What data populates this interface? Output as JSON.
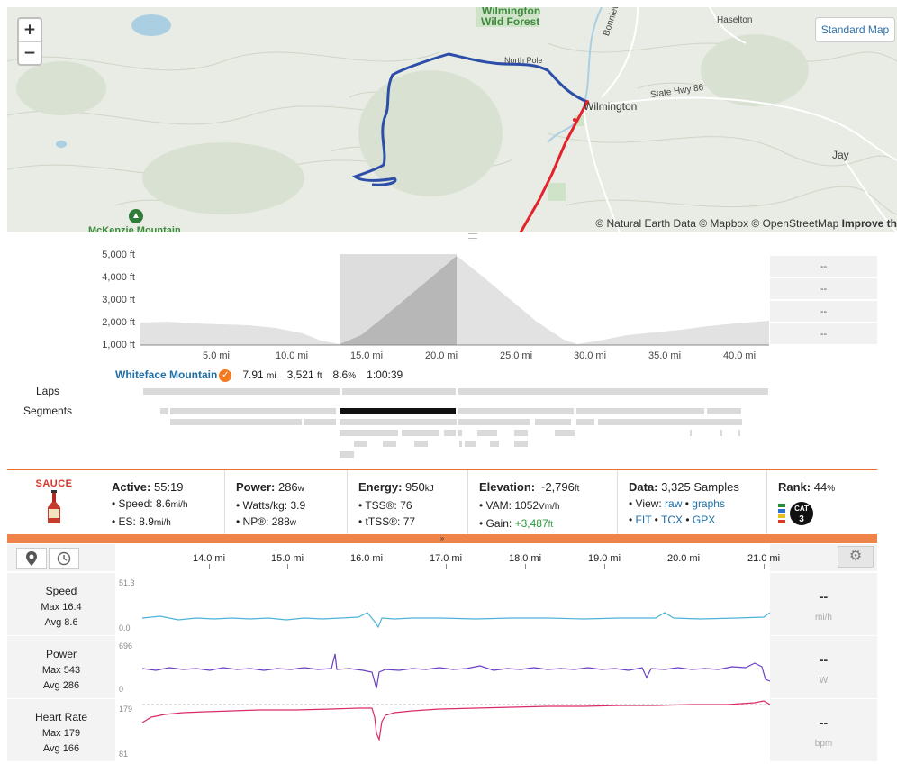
{
  "map": {
    "zoom_in": "+",
    "zoom_out": "−",
    "style_button": "Standard Map",
    "attribution": "© Natural Earth Data © Mapbox © OpenStreetMap",
    "improve": "Improve th",
    "places": {
      "wilmington_forest": "Wilmington",
      "wild_forest": "Wild Forest",
      "haselton": "Haselton",
      "north_pole": "North Pole",
      "wilmington": "Wilmington",
      "state_hwy": "State Hwy 86",
      "bonnieview": "Bonnieview A",
      "jay": "Jay",
      "mckenzie": "McKenzie Mountain"
    }
  },
  "elevation": {
    "y_ticks": [
      "5,000 ft",
      "4,000 ft",
      "3,000 ft",
      "2,000 ft",
      "1,000 ft"
    ],
    "x_ticks": [
      "5.0 mi",
      "10.0 mi",
      "15.0 mi",
      "20.0 mi",
      "25.0 mi",
      "30.0 mi",
      "35.0 mi",
      "40.0 mi"
    ],
    "side_values": [
      "--",
      "--",
      "--",
      "--"
    ],
    "segment": {
      "name": "Whiteface Mountain",
      "distance": "7.91",
      "distance_unit": "mi",
      "gain": "3,521",
      "gain_unit": "ft",
      "grade": "8.6",
      "grade_unit": "%",
      "time": "1:00:39"
    },
    "laps_label": "Laps",
    "segments_label": "Segments"
  },
  "stats": {
    "logo": "SAUCE",
    "active": {
      "label": "Active:",
      "value": "55:19",
      "speed_label": "Speed:",
      "speed": "8.6",
      "speed_unit": "mi/h",
      "es_label": "ES:",
      "es": "8.9",
      "es_unit": "mi/h"
    },
    "power": {
      "label": "Power:",
      "value": "286",
      "unit": "w",
      "wkg_label": "Watts/kg:",
      "wkg": "3.9",
      "np_label": "NP®:",
      "np": "288",
      "np_unit": "w"
    },
    "energy": {
      "label": "Energy:",
      "value": "950",
      "unit": "kJ",
      "tss_label": "TSS®:",
      "tss": "76",
      "ttss_label": "tTSS®:",
      "ttss": "77"
    },
    "elevation": {
      "label": "Elevation:",
      "value": "~2,796",
      "unit": "ft",
      "vam_label": "VAM:",
      "vam": "1052",
      "vam_unit": "Vm/h",
      "gain_label": "Gain:",
      "gain": "+3,487",
      "gain_unit": "ft"
    },
    "data": {
      "label": "Data:",
      "value": "3,325",
      "samples": "Samples",
      "view_label": "View:",
      "raw": "raw",
      "graphs": "graphs",
      "fit": "FIT",
      "tcx": "TCX",
      "gpx": "GPX",
      "dot": "•"
    },
    "rank": {
      "label": "Rank:",
      "value": "44",
      "unit": "%",
      "cat": "CAT",
      "cat_num": "3"
    }
  },
  "expand_glyph": "»",
  "traces": {
    "x_ticks": [
      "14.0 mi",
      "15.0 mi",
      "16.0 mi",
      "17.0 mi",
      "18.0 mi",
      "19.0 mi",
      "20.0 mi",
      "21.0 mi"
    ],
    "gear_glyph": "⚙",
    "rows": [
      {
        "label": "Speed",
        "max_label": "Max",
        "max": "16.4",
        "avg_label": "Avg",
        "avg": "8.6",
        "ymax": "51.3",
        "ymin": "0.0",
        "value": "--",
        "unit": "mi/h",
        "color": "#4db3d8"
      },
      {
        "label": "Power",
        "max_label": "Max",
        "max": "543",
        "avg_label": "Avg",
        "avg": "286",
        "ymax": "696",
        "ymin": "0",
        "value": "--",
        "unit": "W",
        "color": "#6a3fc4"
      },
      {
        "label": "Heart Rate",
        "max_label": "Max",
        "max": "179",
        "avg_label": "Avg",
        "avg": "166",
        "ymax": "179",
        "ymin": "81",
        "value": "--",
        "unit": "bpm",
        "color": "#d92a6b"
      }
    ]
  },
  "colors": {
    "accent": "#ef6f2c",
    "route_blue": "#2c4ea8",
    "route_red": "#e3222a",
    "link": "#1f6fa6"
  }
}
